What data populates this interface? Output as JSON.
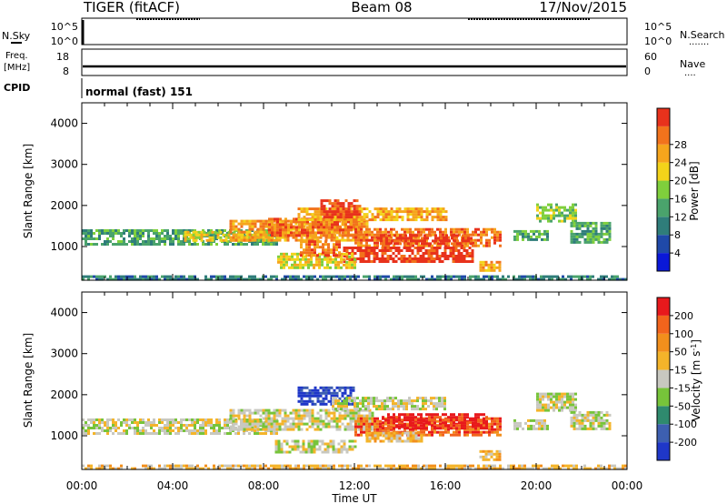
{
  "header": {
    "radar": "TIGER (fitACF)",
    "beam": "Beam 08",
    "date": "17/Nov/2015"
  },
  "noise_panel": {
    "left_label": "N.Sky",
    "right_label": "N.Search",
    "right_dots": "·······",
    "left_ticks": [
      "10^5",
      "10^0"
    ],
    "right_ticks": [
      "10^5",
      "10^0"
    ]
  },
  "freq_panel": {
    "label_line1": "Freq.",
    "label_line2": "[MHz]",
    "right_label": "Nave",
    "right_dots": "····",
    "left_ticks": [
      "18",
      "8"
    ],
    "right_ticks": [
      "60",
      "0"
    ]
  },
  "cpid_panel": {
    "label": "CPID",
    "text": "normal (fast) 151"
  },
  "time_axis": {
    "label": "Time UT",
    "ticks": [
      "00:00",
      "04:00",
      "08:00",
      "12:00",
      "16:00",
      "20:00",
      "00:00"
    ]
  },
  "chart_data": [
    {
      "type": "heatmap",
      "ylabel": "Slant Range [km]",
      "xlabel": "Time UT",
      "xlim": [
        0,
        24
      ],
      "ylim": [
        180,
        4500
      ],
      "y_ticks": [
        "1000",
        "2000",
        "3000",
        "4000"
      ],
      "colorbar": {
        "label": "Power [dB]",
        "ticks": [
          "4",
          "8",
          "12",
          "16",
          "20",
          "24",
          "28"
        ],
        "range": [
          0,
          32
        ],
        "colors": [
          "#0a18d8",
          "#1f49a8",
          "#2f7d7a",
          "#4aa36c",
          "#7fcf3c",
          "#f3d31a",
          "#f6a51c",
          "#f2731c",
          "#e8321c"
        ]
      },
      "regions": [
        {
          "t0": 0.0,
          "t1": 24.0,
          "r0": 190,
          "r1": 300,
          "level": 2
        },
        {
          "t0": 0.0,
          "t1": 8.6,
          "r0": 1050,
          "r1": 1420,
          "level": 3
        },
        {
          "t0": 4.5,
          "t1": 8.4,
          "r0": 1150,
          "r1": 1380,
          "level": 5
        },
        {
          "t0": 6.5,
          "t1": 12.6,
          "r0": 1150,
          "r1": 1650,
          "level": 6
        },
        {
          "t0": 8.2,
          "t1": 12.2,
          "r0": 1300,
          "r1": 1700,
          "level": 7
        },
        {
          "t0": 9.5,
          "t1": 16.0,
          "r0": 1620,
          "r1": 1950,
          "level": 6
        },
        {
          "t0": 10.5,
          "t1": 12.2,
          "r0": 1750,
          "r1": 2150,
          "level": 8
        },
        {
          "t0": 12.0,
          "t1": 18.4,
          "r0": 1000,
          "r1": 1450,
          "level": 7
        },
        {
          "t0": 13.0,
          "t1": 17.2,
          "r0": 1050,
          "r1": 1300,
          "level": 8
        },
        {
          "t0": 11.5,
          "t1": 17.2,
          "r0": 650,
          "r1": 1000,
          "level": 8
        },
        {
          "t0": 8.6,
          "t1": 12.0,
          "r0": 500,
          "r1": 850,
          "level": 5
        },
        {
          "t0": 9.6,
          "t1": 11.3,
          "r0": 800,
          "r1": 1150,
          "level": 7
        },
        {
          "t0": 17.5,
          "t1": 18.4,
          "r0": 450,
          "r1": 650,
          "level": 6
        },
        {
          "t0": 20.0,
          "t1": 21.8,
          "r0": 1620,
          "r1": 2050,
          "level": 4
        },
        {
          "t0": 21.5,
          "t1": 23.3,
          "r0": 1100,
          "r1": 1600,
          "level": 3
        },
        {
          "t0": 19.0,
          "t1": 20.5,
          "r0": 1200,
          "r1": 1400,
          "level": 3
        }
      ]
    },
    {
      "type": "heatmap",
      "ylabel": "Slant Range [km]",
      "xlabel": "Time UT",
      "xlim": [
        0,
        24
      ],
      "ylim": [
        180,
        4500
      ],
      "y_ticks": [
        "1000",
        "2000",
        "3000",
        "4000"
      ],
      "colorbar": {
        "label": "Velocity [m s^-1]",
        "ticks": [
          "200",
          "100",
          "50",
          "15",
          "-15",
          "-50",
          "-100",
          "-200"
        ],
        "range": [
          -250,
          250
        ],
        "colors": [
          "#1f37c8",
          "#3d5fb0",
          "#2f8a6e",
          "#77c43a",
          "#c8c8c0",
          "#f4b42a",
          "#f28f1c",
          "#f2641c",
          "#e8191c"
        ]
      },
      "regions": [
        {
          "t0": 0.0,
          "t1": 24.0,
          "r0": 190,
          "r1": 300,
          "level": 5
        },
        {
          "t0": 0.0,
          "t1": 8.6,
          "r0": 1050,
          "r1": 1420,
          "level": 4
        },
        {
          "t0": 6.5,
          "t1": 12.8,
          "r0": 1150,
          "r1": 1650,
          "level": 4
        },
        {
          "t0": 9.5,
          "t1": 12.0,
          "r0": 1750,
          "r1": 2200,
          "level": 0
        },
        {
          "t0": 11.0,
          "t1": 16.0,
          "r0": 1650,
          "r1": 1950,
          "level": 4
        },
        {
          "t0": 12.0,
          "t1": 18.4,
          "r0": 1000,
          "r1": 1450,
          "level": 7
        },
        {
          "t0": 13.2,
          "t1": 17.8,
          "r0": 1200,
          "r1": 1550,
          "level": 8
        },
        {
          "t0": 12.5,
          "t1": 15.0,
          "r0": 900,
          "r1": 1100,
          "level": 5
        },
        {
          "t0": 8.5,
          "t1": 12.0,
          "r0": 580,
          "r1": 900,
          "level": 4
        },
        {
          "t0": 17.5,
          "t1": 18.4,
          "r0": 450,
          "r1": 650,
          "level": 5
        },
        {
          "t0": 20.0,
          "t1": 21.8,
          "r0": 1650,
          "r1": 2050,
          "level": 4
        },
        {
          "t0": 21.5,
          "t1": 23.3,
          "r0": 1150,
          "r1": 1600,
          "level": 4
        },
        {
          "t0": 19.0,
          "t1": 20.5,
          "r0": 1200,
          "r1": 1400,
          "level": 4
        }
      ]
    }
  ]
}
